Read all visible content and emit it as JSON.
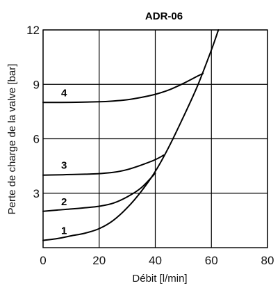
{
  "chart_data": {
    "type": "line",
    "title": "ADR-06",
    "xlabel": "Débit [l/min]",
    "ylabel": "Perte de charge de la valve [bar]",
    "xlim": [
      0,
      80
    ],
    "ylim": [
      0,
      12
    ],
    "xticks": [
      "0",
      "20",
      "40",
      "60",
      "80"
    ],
    "yticks": [
      "3",
      "6",
      "9",
      "12"
    ],
    "grid": true,
    "series": [
      {
        "name": "1",
        "x": [
          0,
          5,
          10,
          15,
          20,
          25,
          30,
          35,
          40,
          45,
          50,
          55,
          60,
          62.5
        ],
        "y": [
          0.4,
          0.5,
          0.65,
          0.8,
          1.05,
          1.5,
          2.2,
          3.1,
          4.2,
          5.6,
          7.2,
          8.9,
          10.9,
          12
        ]
      },
      {
        "name": "2",
        "x": [
          0,
          5,
          10,
          15,
          20,
          25,
          30,
          35,
          40
        ],
        "y": [
          2.0,
          2.07,
          2.13,
          2.2,
          2.28,
          2.45,
          2.8,
          3.3,
          4.1
        ]
      },
      {
        "name": "3",
        "x": [
          0,
          5,
          10,
          15,
          20,
          25,
          30,
          35,
          40,
          43
        ],
        "y": [
          4.0,
          4.01,
          4.03,
          4.05,
          4.08,
          4.15,
          4.3,
          4.55,
          4.85,
          5.1
        ]
      },
      {
        "name": "4",
        "x": [
          0,
          10,
          20,
          25,
          30,
          35,
          40,
          45,
          50,
          55,
          57
        ],
        "y": [
          8.0,
          8.01,
          8.04,
          8.08,
          8.15,
          8.28,
          8.45,
          8.7,
          9.05,
          9.45,
          9.6
        ]
      }
    ],
    "curve_labels": [
      "1",
      "2",
      "3",
      "4"
    ]
  }
}
